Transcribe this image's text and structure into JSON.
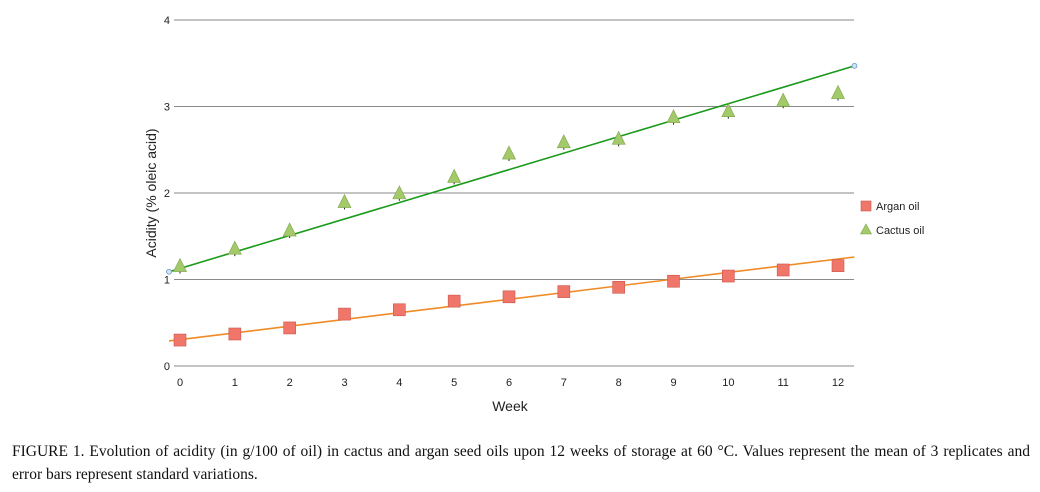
{
  "chart_data": {
    "type": "scatter",
    "xlabel": "Week",
    "ylabel": "Acidity (% oleic acid)",
    "xlim": [
      0,
      12
    ],
    "ylim": [
      0,
      4
    ],
    "x_ticks": [
      0,
      1,
      2,
      3,
      4,
      5,
      6,
      7,
      8,
      9,
      10,
      11,
      12
    ],
    "y_ticks": [
      0,
      1,
      2,
      3,
      4
    ],
    "grid": "horizontal",
    "legend_position": "right",
    "series": [
      {
        "name": "Argan oil",
        "marker": "square",
        "color": "#f0766a",
        "trend_color": "#f08a24",
        "x": [
          0,
          1,
          2,
          3,
          4,
          5,
          6,
          7,
          8,
          9,
          10,
          11,
          12
        ],
        "values": [
          0.3,
          0.37,
          0.44,
          0.6,
          0.65,
          0.75,
          0.8,
          0.86,
          0.91,
          0.98,
          1.04,
          1.11,
          1.16
        ],
        "error": [
          0.07,
          0.07,
          0.07,
          0.07,
          0.07,
          0.07,
          0.07,
          0.07,
          0.07,
          0.07,
          0.07,
          0.07,
          0.07
        ],
        "trend": [
          0.29,
          1.26
        ]
      },
      {
        "name": "Cactus oil",
        "marker": "triangle",
        "color": "#a4c96a",
        "trend_color": "#1a9a1a",
        "x": [
          0,
          1,
          2,
          3,
          4,
          5,
          6,
          7,
          8,
          9,
          10,
          11,
          12
        ],
        "values": [
          1.15,
          1.35,
          1.56,
          1.89,
          1.99,
          2.18,
          2.45,
          2.58,
          2.62,
          2.87,
          2.94,
          3.06,
          3.15
        ],
        "error": [
          0.08,
          0.08,
          0.08,
          0.08,
          0.08,
          0.08,
          0.08,
          0.08,
          0.08,
          0.08,
          0.08,
          0.08,
          0.08
        ],
        "trend": [
          1.09,
          3.47
        ]
      }
    ]
  },
  "caption": "FIGURE 1. Evolution of acidity (in g/100 of oil) in cactus and argan seed oils upon 12 weeks of storage at 60 °C. Values represent the mean of 3 replicates and error bars represent standard variations."
}
